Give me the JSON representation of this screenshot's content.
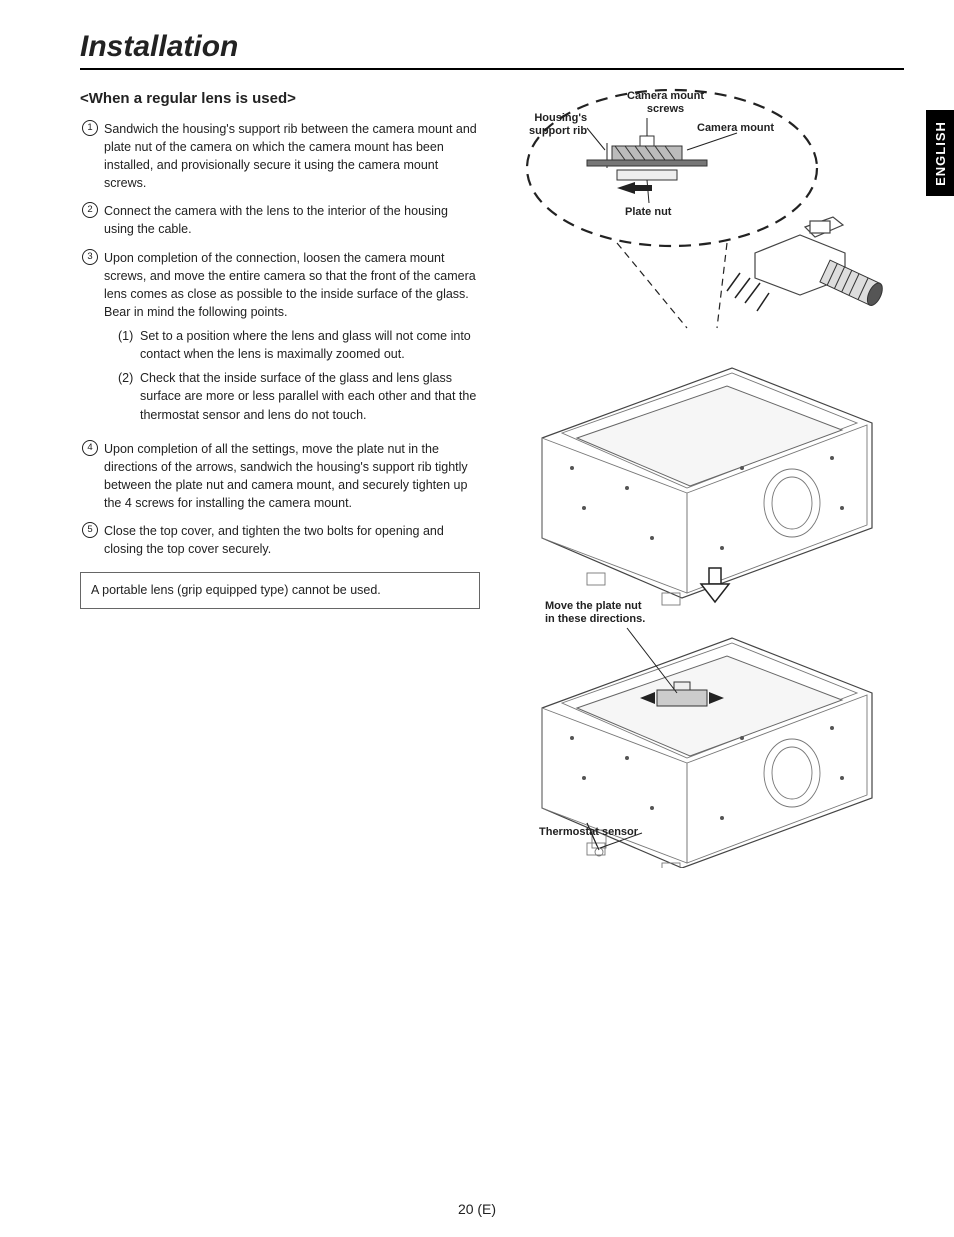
{
  "page": {
    "title": "Installation",
    "subhead": "<When a regular lens is used>",
    "language_tab": "ENGLISH",
    "page_number": "20 (E)"
  },
  "steps": [
    {
      "n": "1",
      "text": "Sandwich the housing's support rib between the camera mount and plate nut of the camera on which the camera mount has been installed, and provisionally secure it using the camera mount screws."
    },
    {
      "n": "2",
      "text": "Connect the camera with the lens to the interior of the housing using the cable."
    },
    {
      "n": "3",
      "text": "Upon completion of the connection, loosen the camera mount screws, and move the entire camera so that the front of the camera lens comes as close as possible to the inside surface of the glass. Bear in mind the following points."
    },
    {
      "n": "4",
      "text": "Upon completion of all the settings, move the plate nut in the directions of the arrows, sandwich the housing's support rib tightly between the plate nut and camera mount, and securely tighten up the 4 screws for installing the camera mount."
    },
    {
      "n": "5",
      "text": "Close the top cover, and tighten the two bolts for opening and closing the top cover securely."
    }
  ],
  "substeps": [
    {
      "n": "(1)",
      "text": "Set to a position where the lens and glass will not come into contact when the lens is maximally zoomed out."
    },
    {
      "n": "(2)",
      "text": "Check that the inside surface of the glass and lens glass surface are more or less parallel with each other and that the thermostat sensor and lens do not touch."
    }
  ],
  "note": "A portable lens (grip equipped type) cannot be used.",
  "diagram_labels": {
    "camera_mount_screws": "Camera mount\nscrews",
    "housing_support_rib": "Housing's\nsupport rib",
    "camera_mount": "Camera mount",
    "plate_nut": "Plate nut",
    "move_plate_nut": "Move the plate nut\nin these directions.",
    "thermostat_sensor": "Thermostat sensor"
  },
  "colors": {
    "text": "#222222",
    "line": "#444444",
    "bg": "#ffffff",
    "tab_bg": "#000000",
    "tab_fg": "#ffffff"
  }
}
